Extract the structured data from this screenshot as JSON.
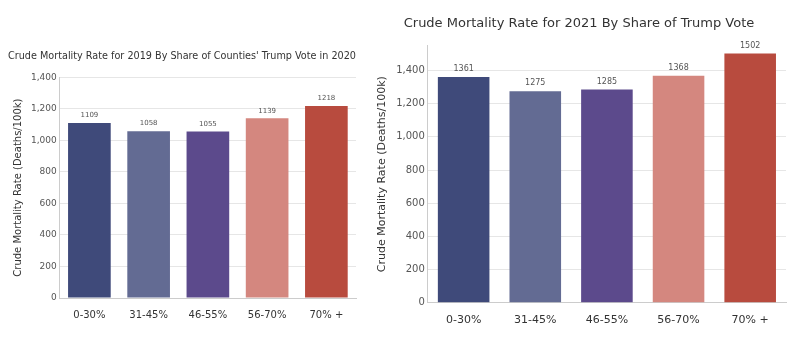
{
  "chart_data": [
    {
      "type": "bar",
      "title": "Crude Mortality Rate for 2019 By Share of Counties' Trump Vote in 2020",
      "y_label": "Crude Mortality Rate (Deaths/100k)",
      "categories": [
        "0-30%",
        "31-45%",
        "46-55%",
        "56-70%",
        "70% +"
      ],
      "values": [
        1109,
        1058,
        1055,
        1139,
        1218
      ],
      "colors": [
        "#3f4a7a",
        "#636b93",
        "#5c4a8c",
        "#d4877f",
        "#b84b3e"
      ],
      "ylim": [
        0,
        1400
      ],
      "yticks": [
        0,
        200,
        400,
        600,
        800,
        {
          "value": 1000,
          "label": "1,000"
        },
        {
          "value": 1200,
          "label": "1,200"
        },
        {
          "value": 1400,
          "label": "1,400"
        }
      ],
      "grid": true,
      "data_labels": true
    },
    {
      "type": "bar",
      "title": "Crude Mortality Rate for 2021 By Share of Trump Vote",
      "y_label": "Crude Mortality Rate (Deaths/100k)",
      "categories": [
        "0-30%",
        "31-45%",
        "46-55%",
        "56-70%",
        "70% +"
      ],
      "values": [
        1361,
        1275,
        1285,
        1368,
        1502
      ],
      "colors": [
        "#3f4a7a",
        "#636b93",
        "#5c4a8c",
        "#d4877f",
        "#b84b3e"
      ],
      "ylim": [
        0,
        1550
      ],
      "yticks": [
        0,
        200,
        400,
        600,
        800,
        {
          "value": 1000,
          "label": "1,000"
        },
        {
          "value": 1200,
          "label": "1,200"
        },
        {
          "value": 1400,
          "label": "1,400"
        }
      ],
      "grid": true,
      "data_labels": true
    }
  ]
}
